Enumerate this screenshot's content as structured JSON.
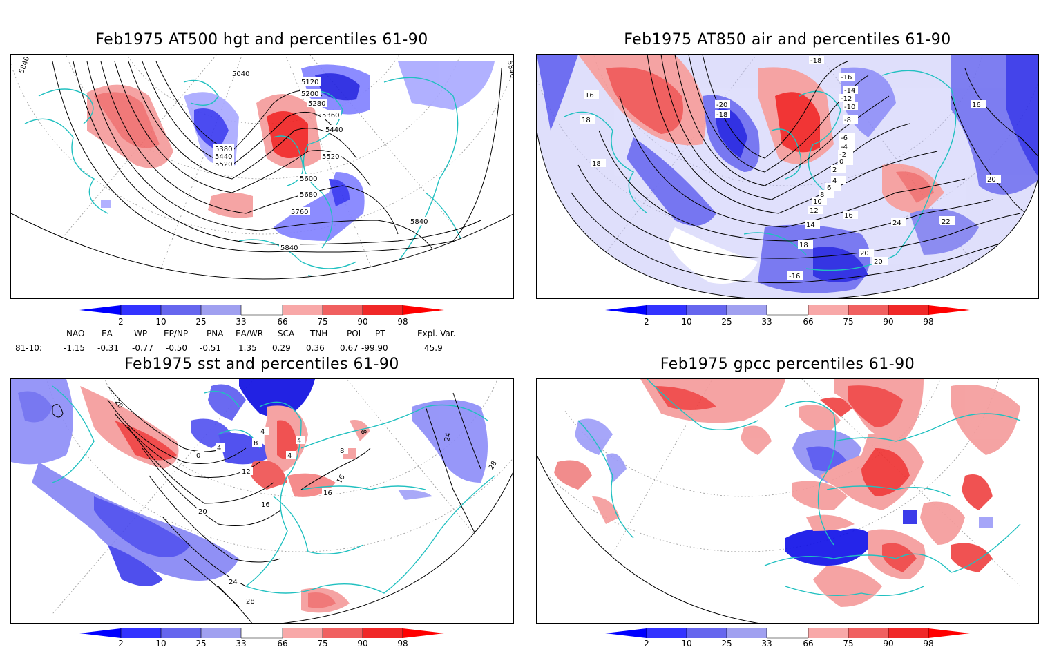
{
  "panels": [
    {
      "title": "Feb1975 AT500 hgt and percentiles 61-90",
      "contours": [
        "5040",
        "5120",
        "5200",
        "5280",
        "5360",
        "5440",
        "5520",
        "5380",
        "5440",
        "5520",
        "5600",
        "5680",
        "5760",
        "5840",
        "5840",
        "5840",
        "5840"
      ]
    },
    {
      "title": "Feb1975 AT850 air and percentiles 61-90",
      "contours": [
        "-20",
        "-18",
        "-16",
        "-14",
        "-12",
        "-10",
        "-8",
        "-6",
        "-4",
        "-2",
        "0",
        "2",
        "4",
        "6",
        "8",
        "10",
        "12",
        "14",
        "16",
        "18",
        "20",
        "22",
        "24",
        "16",
        "16",
        "18",
        "18",
        "20",
        "22",
        "20",
        "-18",
        "-16"
      ]
    },
    {
      "title": "Feb1975 sst and percentiles 61-90",
      "contours": [
        "20",
        "0",
        "4",
        "8",
        "4",
        "12",
        "16",
        "20",
        "24",
        "28",
        "16",
        "16",
        "8",
        "8",
        "4",
        "24",
        "28",
        "4"
      ]
    },
    {
      "title": "Feb1975 gpcc percentiles 61-90",
      "contours": []
    }
  ],
  "colorbar": {
    "labels": [
      "2",
      "10",
      "25",
      "33",
      "66",
      "75",
      "90",
      "98"
    ],
    "colors": [
      "#0000ff",
      "#3333ff",
      "#6666ee",
      "#a0a0f0",
      "#ffffff",
      "#f8a8a8",
      "#f06060",
      "#f02828",
      "#ff0000"
    ]
  },
  "indices": {
    "headers": [
      "NAO",
      "EA",
      "WP",
      "EP/NP",
      "PNA",
      "EA/WR",
      "SCA",
      "TNH",
      "POL",
      "PT",
      "Expl. Var."
    ],
    "row_label": "81-10:",
    "values": [
      "-1.15",
      "-0.31",
      "-0.77",
      "-0.50",
      "-0.51",
      "1.35",
      "0.29",
      "0.36",
      "0.67",
      "-99.90",
      "45.9"
    ]
  }
}
